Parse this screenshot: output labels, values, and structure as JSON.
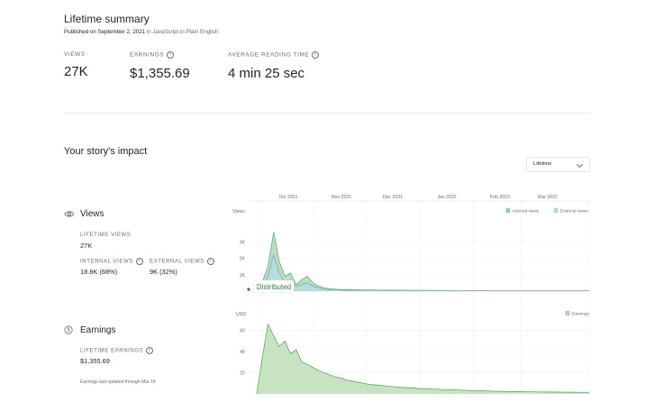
{
  "header": {
    "title": "Lifetime summary",
    "published_prefix": "Published on September 2, 2021",
    "published_suffix": " in JavaScript in Plain English"
  },
  "summary": {
    "views_label": "VIEWS",
    "views_value": "27K",
    "earnings_label": "EARNINGS",
    "earnings_value": "$1,355.69",
    "reading_label": "AVERAGE READING TIME",
    "reading_value": "4 min 25 sec"
  },
  "impact": {
    "title": "Your story's impact",
    "range_select": "Lifetime"
  },
  "views_section": {
    "title": "Views",
    "lifetime_label": "LIFETIME VIEWS",
    "lifetime_value": "27K",
    "internal_label": "INTERNAL VIEWS",
    "internal_value": "18.8K (68%)",
    "external_label": "EXTERNAL VIEWS",
    "external_value": "9K (32%)"
  },
  "earnings_section": {
    "title": "Earnings",
    "lifetime_label": "LIFETIME EARNINGS",
    "lifetime_value": "$1,355.69",
    "footnote": "Earnings last updated through Mar 18"
  },
  "colors": {
    "internal": "#9fcfa4",
    "internal_line": "#5aa867",
    "external": "#b5dbe6",
    "external_line": "#6fa8b8",
    "earnings": "#b9dcb2",
    "earnings_line": "#4f9a57"
  },
  "chart_data": [
    {
      "type": "area",
      "title": "",
      "ylabel": "Views",
      "x_ticks": [
        "Oct 2021",
        "Nov 2021",
        "Dec 2021",
        "Jan 2022",
        "Feb 2022",
        "Mar 2022"
      ],
      "y_ticks": [
        "1K",
        "2K",
        "3K"
      ],
      "ylim": [
        0,
        4000
      ],
      "series": [
        {
          "name": "Internal views",
          "values": [
            0,
            600,
            1500,
            3600,
            1800,
            900,
            1100,
            400,
            700,
            900,
            500,
            300,
            200,
            150,
            120,
            100,
            90,
            80,
            80,
            70,
            70,
            60,
            60,
            60,
            60,
            55,
            55,
            50,
            50,
            50,
            50,
            45,
            45,
            45,
            40,
            40,
            40,
            40,
            35,
            35,
            35,
            30,
            30,
            30,
            30,
            30,
            30,
            30,
            25,
            25,
            25,
            25,
            25,
            25,
            25,
            25,
            25,
            25,
            25,
            25
          ]
        },
        {
          "name": "External views",
          "values": [
            0,
            300,
            900,
            2200,
            1100,
            500,
            700,
            300,
            400,
            500,
            300,
            200,
            120,
            90,
            80,
            60,
            55,
            50,
            50,
            45,
            45,
            40,
            40,
            40,
            35,
            35,
            35,
            30,
            30,
            30,
            30,
            30,
            30,
            25,
            25,
            25,
            25,
            25,
            25,
            20,
            20,
            20,
            20,
            20,
            20,
            20,
            20,
            20,
            20,
            20,
            20,
            20,
            20,
            20,
            20,
            20,
            20,
            20,
            20,
            20
          ]
        }
      ],
      "legend": "top-right",
      "annotation": "Distributed"
    },
    {
      "type": "area",
      "title": "",
      "ylabel": "USD",
      "y_ticks": [
        "20",
        "40",
        "60"
      ],
      "ylim": [
        0,
        70
      ],
      "series": [
        {
          "name": "Earnings",
          "values": [
            0,
            35,
            66,
            55,
            45,
            50,
            38,
            42,
            30,
            28,
            25,
            22,
            20,
            18,
            16,
            15,
            13,
            12,
            11,
            10,
            9,
            8.5,
            8,
            7.5,
            7,
            6.5,
            6,
            6,
            5.5,
            5,
            5,
            4.5,
            4.5,
            4,
            4,
            3.8,
            3.6,
            3.4,
            3.2,
            3,
            3,
            2.8,
            2.6,
            2.5,
            2.4,
            2.3,
            2.2,
            2.1,
            2,
            2,
            1.9,
            1.8,
            1.8,
            1.7,
            1.7,
            1.6,
            1.6,
            1.5,
            1.5,
            1.5
          ]
        }
      ],
      "legend": "top-right"
    }
  ]
}
